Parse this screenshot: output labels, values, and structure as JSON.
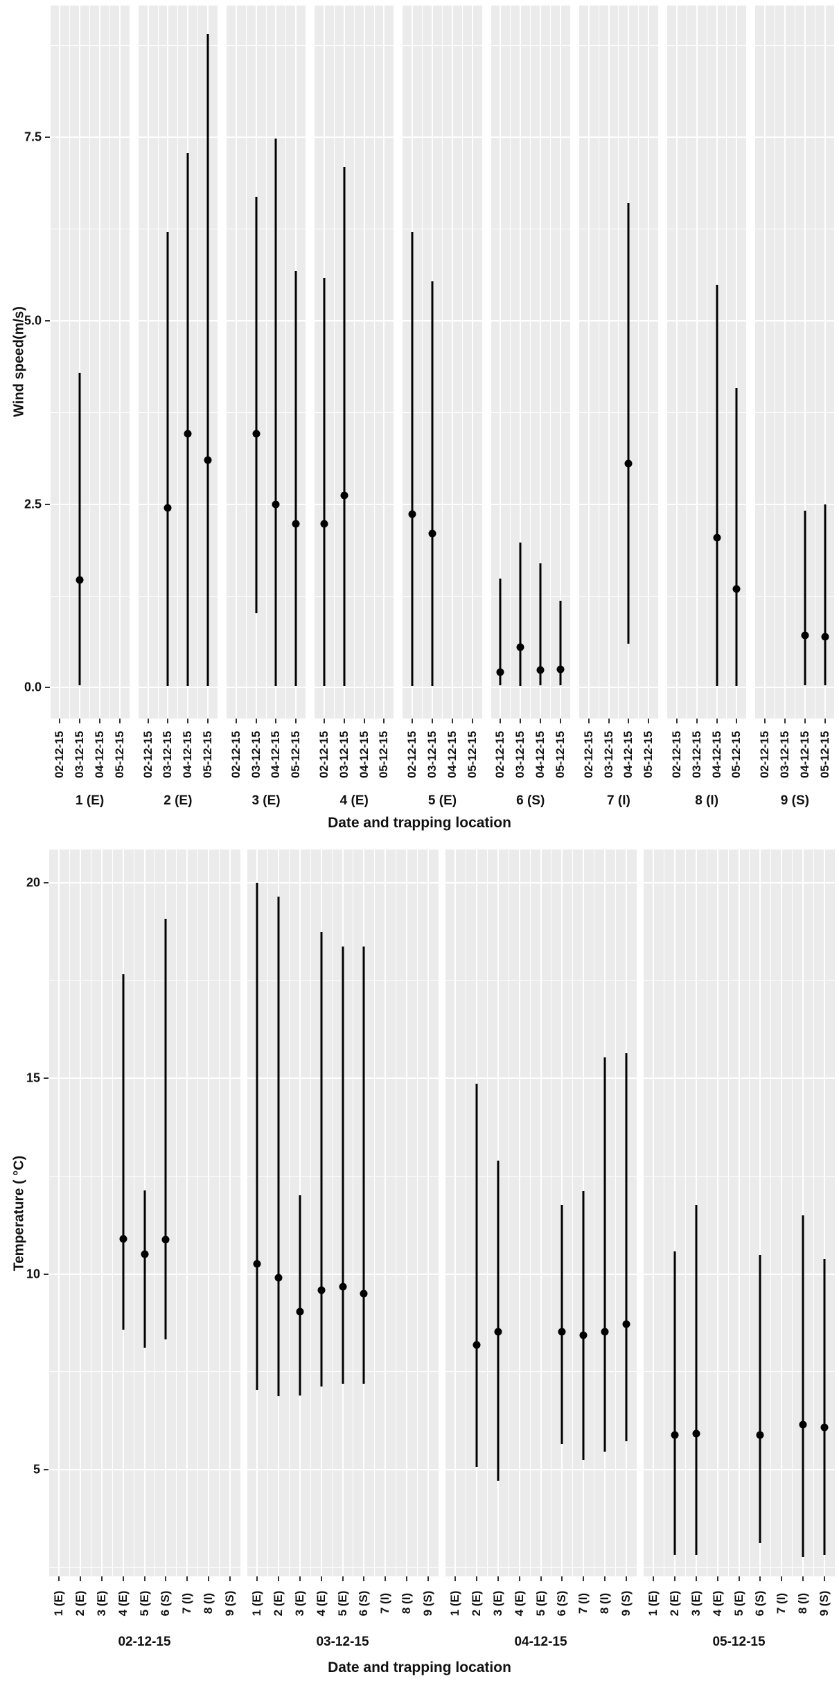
{
  "chart_data": {
    "type": "pointrange",
    "description": "Two faceted point-range charts of mean with min-max range",
    "colors": {
      "panel_background": "#ebebeb",
      "gridline": "#ffffff",
      "data": "#000000",
      "text": "#111111",
      "page_background": "#ffffff"
    },
    "charts": [
      {
        "name": "wind-speed",
        "ylabel": "Wind speed(m/s)",
        "xlabel": "Date and trapping location",
        "ylim": [
          -0.42,
          9.29
        ],
        "yticks": [
          {
            "v": 0.0,
            "label": "0.0"
          },
          {
            "v": 2.5,
            "label": "2.5"
          },
          {
            "v": 5.0,
            "label": "5.0"
          },
          {
            "v": 7.5,
            "label": "7.5"
          }
        ],
        "yminor": [
          1.25,
          3.75,
          6.25,
          8.75
        ],
        "tick_categories": [
          "02-12-15",
          "03-12-15",
          "04-12-15",
          "05-12-15"
        ],
        "facets": [
          {
            "label": "1 (E)",
            "points": [
              {
                "x": "03-12-15",
                "y": 1.47,
                "lo": 0.03,
                "hi": 4.29
              }
            ]
          },
          {
            "label": "2 (E)",
            "points": [
              {
                "x": "03-12-15",
                "y": 2.45,
                "lo": 0.02,
                "hi": 6.2
              },
              {
                "x": "04-12-15",
                "y": 3.46,
                "lo": 0.02,
                "hi": 7.28
              },
              {
                "x": "05-12-15",
                "y": 3.1,
                "lo": 0.02,
                "hi": 8.9
              }
            ]
          },
          {
            "label": "3 (E)",
            "points": [
              {
                "x": "03-12-15",
                "y": 3.46,
                "lo": 1.01,
                "hi": 6.69
              },
              {
                "x": "04-12-15",
                "y": 2.5,
                "lo": 0.02,
                "hi": 7.48
              },
              {
                "x": "05-12-15",
                "y": 2.23,
                "lo": 0.02,
                "hi": 5.68
              }
            ]
          },
          {
            "label": "4 (E)",
            "points": [
              {
                "x": "02-12-15",
                "y": 2.23,
                "lo": 0.02,
                "hi": 5.58
              },
              {
                "x": "03-12-15",
                "y": 2.62,
                "lo": 0.02,
                "hi": 7.09
              }
            ]
          },
          {
            "label": "5 (E)",
            "points": [
              {
                "x": "02-12-15",
                "y": 2.36,
                "lo": 0.02,
                "hi": 6.2
              },
              {
                "x": "03-12-15",
                "y": 2.1,
                "lo": 0.02,
                "hi": 5.53
              }
            ]
          },
          {
            "label": "6 (S)",
            "points": [
              {
                "x": "02-12-15",
                "y": 0.21,
                "lo": 0.03,
                "hi": 1.49
              },
              {
                "x": "03-12-15",
                "y": 0.55,
                "lo": 0.02,
                "hi": 1.98
              },
              {
                "x": "04-12-15",
                "y": 0.24,
                "lo": 0.03,
                "hi": 1.69
              },
              {
                "x": "05-12-15",
                "y": 0.25,
                "lo": 0.03,
                "hi": 1.18
              }
            ]
          },
          {
            "label": "7 (I)",
            "points": [
              {
                "x": "04-12-15",
                "y": 3.05,
                "lo": 0.6,
                "hi": 6.6
              }
            ]
          },
          {
            "label": "8 (I)",
            "points": [
              {
                "x": "04-12-15",
                "y": 2.04,
                "lo": 0.02,
                "hi": 5.49
              },
              {
                "x": "05-12-15",
                "y": 1.34,
                "lo": 0.02,
                "hi": 4.08
              }
            ]
          },
          {
            "label": "9 (S)",
            "points": [
              {
                "x": "04-12-15",
                "y": 0.71,
                "lo": 0.03,
                "hi": 2.41
              },
              {
                "x": "05-12-15",
                "y": 0.69,
                "lo": 0.03,
                "hi": 2.5
              }
            ]
          }
        ]
      },
      {
        "name": "temperature",
        "ylabel": "Temperature ( °C)",
        "xlabel": "Date and trapping location",
        "ylim": [
          2.27,
          20.85
        ],
        "yticks": [
          {
            "v": 5,
            "label": "5"
          },
          {
            "v": 10,
            "label": "10"
          },
          {
            "v": 15,
            "label": "15"
          },
          {
            "v": 20,
            "label": "20"
          }
        ],
        "yminor": [
          2.5,
          7.5,
          12.5,
          17.5
        ],
        "tick_categories": [
          "1 (E)",
          "2 (E)",
          "3 (E)",
          "4 (E)",
          "5 (E)",
          "6 (S)",
          "7 (I)",
          "8 (I)",
          "9 (S)"
        ],
        "facets": [
          {
            "label": "02-12-15",
            "points": [
              {
                "x": "4 (E)",
                "y": 10.9,
                "lo": 8.57,
                "hi": 17.66
              },
              {
                "x": "5 (E)",
                "y": 10.5,
                "lo": 8.12,
                "hi": 12.14
              },
              {
                "x": "6 (S)",
                "y": 10.88,
                "lo": 8.32,
                "hi": 19.08
              }
            ]
          },
          {
            "label": "03-12-15",
            "points": [
              {
                "x": "1 (E)",
                "y": 10.25,
                "lo": 7.04,
                "hi": 20.0
              },
              {
                "x": "2 (E)",
                "y": 9.91,
                "lo": 6.88,
                "hi": 19.65
              },
              {
                "x": "3 (E)",
                "y": 9.03,
                "lo": 6.9,
                "hi": 12.02
              },
              {
                "x": "4 (E)",
                "y": 9.58,
                "lo": 7.12,
                "hi": 18.74
              },
              {
                "x": "5 (E)",
                "y": 9.68,
                "lo": 7.19,
                "hi": 18.37
              },
              {
                "x": "6 (S)",
                "y": 9.49,
                "lo": 7.2,
                "hi": 18.37
              }
            ]
          },
          {
            "label": "04-12-15",
            "points": [
              {
                "x": "2 (E)",
                "y": 8.18,
                "lo": 5.06,
                "hi": 14.87
              },
              {
                "x": "3 (E)",
                "y": 8.53,
                "lo": 4.71,
                "hi": 12.89
              },
              {
                "x": "6 (S)",
                "y": 8.53,
                "lo": 5.65,
                "hi": 11.77
              },
              {
                "x": "7 (I)",
                "y": 8.44,
                "lo": 5.24,
                "hi": 12.11
              },
              {
                "x": "8 (I)",
                "y": 8.53,
                "lo": 5.45,
                "hi": 15.54
              },
              {
                "x": "9 (S)",
                "y": 8.71,
                "lo": 5.72,
                "hi": 15.65
              }
            ]
          },
          {
            "label": "05-12-15",
            "points": [
              {
                "x": "2 (E)",
                "y": 5.88,
                "lo": 2.82,
                "hi": 10.58
              },
              {
                "x": "3 (E)",
                "y": 5.92,
                "lo": 2.82,
                "hi": 11.77
              },
              {
                "x": "6 (S)",
                "y": 5.88,
                "lo": 3.12,
                "hi": 10.48
              },
              {
                "x": "8 (I)",
                "y": 6.15,
                "lo": 2.77,
                "hi": 11.49
              },
              {
                "x": "9 (S)",
                "y": 6.08,
                "lo": 2.82,
                "hi": 10.39
              }
            ]
          }
        ]
      }
    ]
  }
}
